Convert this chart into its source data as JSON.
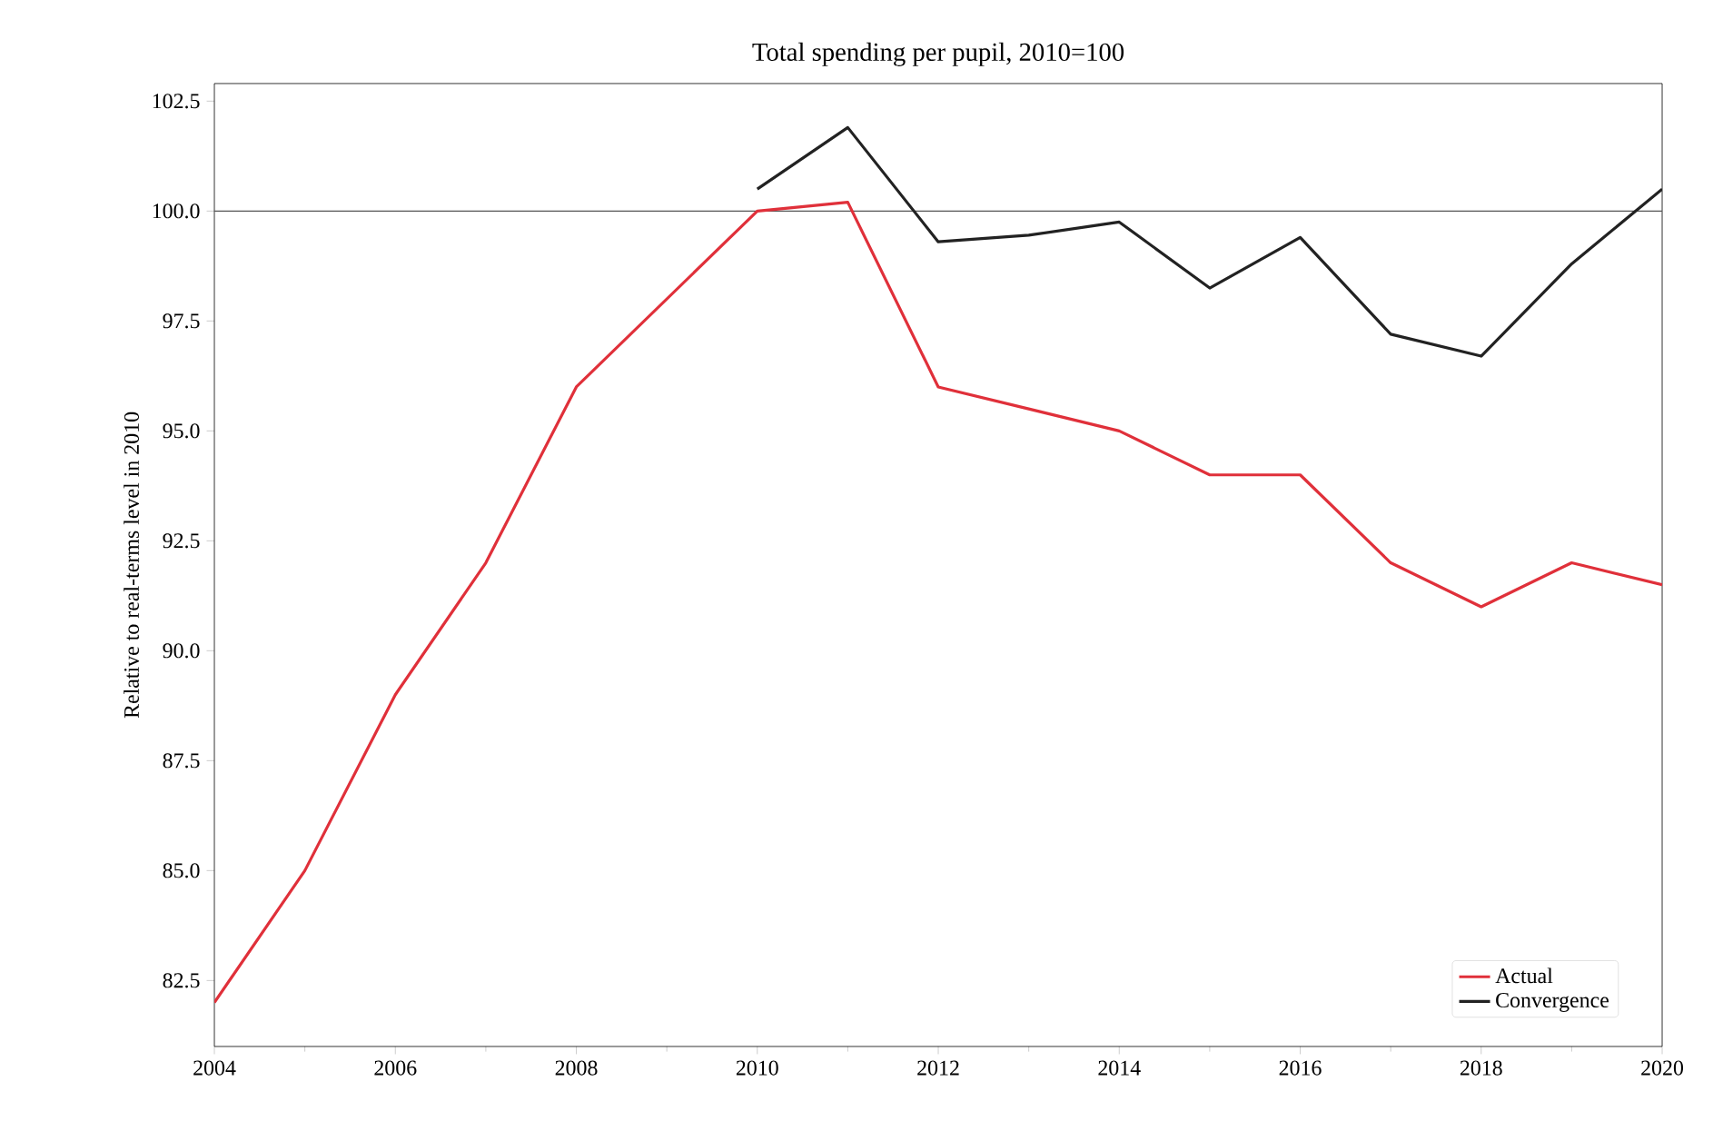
{
  "chart_data": {
    "type": "line",
    "title": "Total spending per pupil, 2010=100",
    "ylabel": "Relative to real-terms level in 2010",
    "x": [
      2004,
      2005,
      2006,
      2007,
      2008,
      2009,
      2010,
      2011,
      2012,
      2013,
      2014,
      2015,
      2016,
      2017,
      2018,
      2019,
      2020
    ],
    "series": [
      {
        "name": "Actual",
        "color": "#e0303a",
        "values": [
          82.0,
          85.0,
          89.0,
          92.0,
          96.0,
          98.0,
          100.0,
          100.2,
          96.0,
          95.5,
          95.0,
          94.0,
          94.0,
          92.0,
          91.0,
          92.0,
          91.5
        ]
      },
      {
        "name": "Convergence",
        "color": "#222222",
        "values": [
          null,
          null,
          null,
          null,
          null,
          null,
          100.5,
          101.9,
          99.3,
          99.45,
          99.75,
          98.25,
          99.4,
          97.2,
          96.7,
          98.8,
          100.5
        ]
      }
    ],
    "xlim": [
      2004,
      2020
    ],
    "xticks": [
      2004,
      2006,
      2008,
      2010,
      2012,
      2014,
      2016,
      2018,
      2020
    ],
    "ylim": [
      81.0,
      102.9
    ],
    "yticks": [
      {
        "value": 82.5,
        "label": "82.5"
      },
      {
        "value": 85,
        "label": "85.0"
      },
      {
        "value": 87.5,
        "label": "87.5"
      },
      {
        "value": 90,
        "label": "90.0"
      },
      {
        "value": 92.5,
        "label": "92.5"
      },
      {
        "value": 95,
        "label": "95.0"
      },
      {
        "value": 97.5,
        "label": "97.5"
      },
      {
        "value": 100,
        "label": "100.0"
      },
      {
        "value": 102.5,
        "label": "102.5"
      }
    ],
    "ref_lines": [
      {
        "axis": "y",
        "value": 100,
        "color": "#555555"
      }
    ],
    "grid": false,
    "legend": "bottom right",
    "marker": "none",
    "line_style": "solid"
  }
}
